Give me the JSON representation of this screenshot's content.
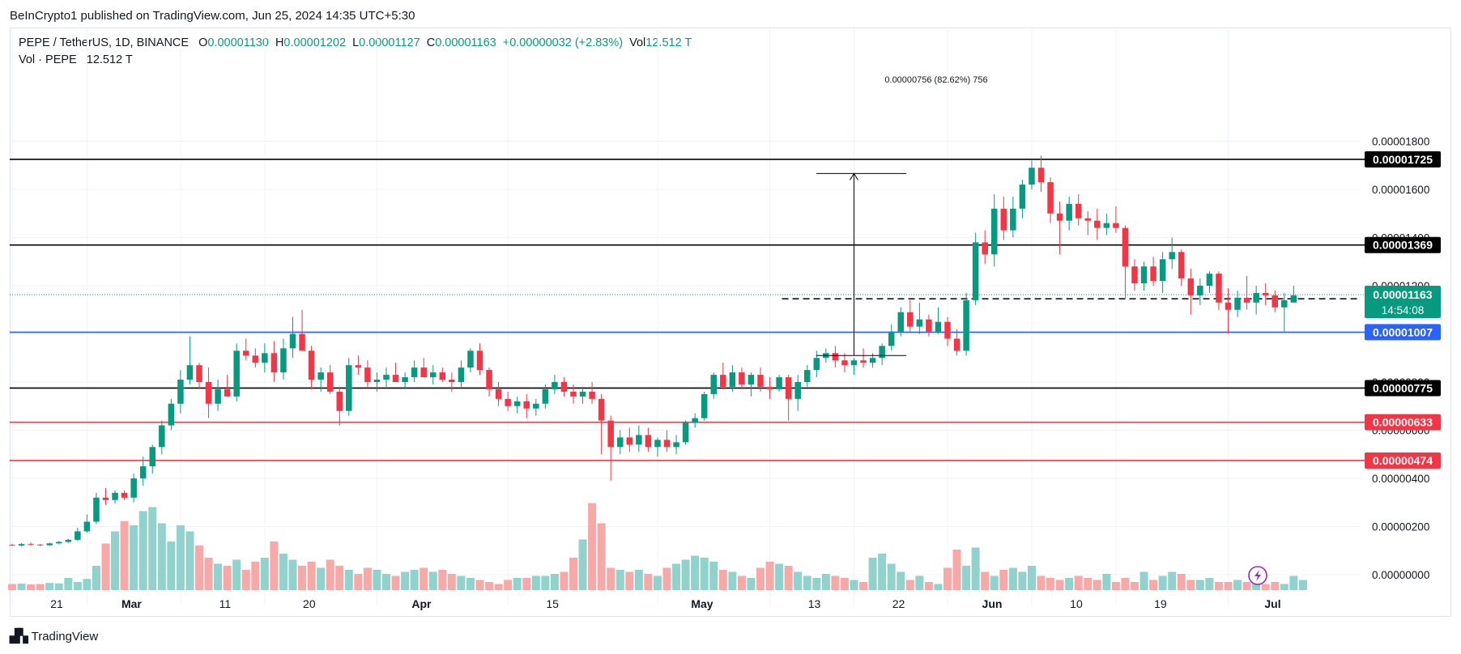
{
  "publisher": "BeInCrypto1 published on TradingView.com, Jun 25, 2024 14:35 UTC+5:30",
  "footer_brand": "TradingView",
  "legend": {
    "symbol": "PEPE / TetherUS, 1D, BINANCE",
    "o_label": "O",
    "o": "0.00001130",
    "h_label": "H",
    "h": "0.00001202",
    "l_label": "L",
    "l": "0.00001127",
    "c_label": "C",
    "c": "0.00001163",
    "change": "+0.00000032 (+2.83%)",
    "vol_label": "Vol",
    "vol": "12.512 T"
  },
  "legend2": {
    "label": "Vol · PEPE",
    "value": "12.512 T"
  },
  "colors": {
    "up": "#089981",
    "down": "#f23645",
    "vol_up": "#92d2cc",
    "vol_down": "#f7a9a7",
    "blue": "#2962ff",
    "black": "#000000"
  },
  "chart_data": {
    "type": "candlestick",
    "y_axis": {
      "min": 0,
      "max": 1.9e-05,
      "ticks": [
        {
          "v": 1.8e-05,
          "label": "0.00001800"
        },
        {
          "v": 1.6e-05,
          "label": "0.00001600"
        },
        {
          "v": 1.4e-05,
          "label": "0.00001400"
        },
        {
          "v": 1.2e-05,
          "label": "0.00001200"
        },
        {
          "v": 8e-06,
          "label": "0.00000800"
        },
        {
          "v": 6e-06,
          "label": "0.00000600"
        },
        {
          "v": 4e-06,
          "label": "0.00000400"
        },
        {
          "v": 2e-06,
          "label": "0.00000200"
        },
        {
          "v": 0,
          "label": "0.00000000"
        }
      ]
    },
    "x_axis": {
      "ticks": [
        {
          "i": 0,
          "label": "21"
        },
        {
          "i": 8,
          "label": "Mar"
        },
        {
          "i": 18,
          "label": "11"
        },
        {
          "i": 27,
          "label": "20"
        },
        {
          "i": 39,
          "label": "Apr"
        },
        {
          "i": 53,
          "label": "15"
        },
        {
          "i": 69,
          "label": "May"
        },
        {
          "i": 81,
          "label": "13"
        },
        {
          "i": 90,
          "label": "22"
        },
        {
          "i": 100,
          "label": "Jun"
        },
        {
          "i": 109,
          "label": "10"
        },
        {
          "i": 118,
          "label": "19"
        },
        {
          "i": 130,
          "label": "Jul"
        }
      ]
    },
    "levels": [
      {
        "price": 1.725e-05,
        "label": "0.00001725",
        "color": "#000000",
        "tag_bg": "#000000"
      },
      {
        "price": 1.369e-05,
        "label": "0.00001369",
        "color": "#000000",
        "tag_bg": "#000000"
      },
      {
        "price": 1.007e-05,
        "label": "0.00001007",
        "color": "#2962ff",
        "tag_bg": "#2962ff"
      },
      {
        "price": 7.75e-06,
        "label": "0.00000775",
        "color": "#000000",
        "tag_bg": "#000000"
      },
      {
        "price": 6.33e-06,
        "label": "0.00000633",
        "color": "#f23645",
        "tag_bg": "#f23645"
      },
      {
        "price": 4.74e-06,
        "label": "0.00000474",
        "color": "#f23645",
        "tag_bg": "#f23645"
      }
    ],
    "dashed_level": {
      "price": 1.146e-05,
      "label": "0.00001146",
      "from": 81,
      "to": 127
    },
    "current_price": {
      "price": 1.163e-05,
      "label": "0.00001163",
      "countdown": "14:54:08"
    },
    "measure": {
      "label": "0.00000756 (82.62%) 756",
      "from": 87,
      "to": 93,
      "low": 9.1e-06,
      "high": 1.666e-05
    },
    "candles": [
      [
        1.24e-06,
        1.28e-06,
        1.19e-06,
        1.21e-06
      ],
      [
        1.21e-06,
        1.31e-06,
        1.18e-06,
        1.27e-06
      ],
      [
        1.27e-06,
        1.34e-06,
        1.22e-06,
        1.25e-06
      ],
      [
        1.25e-06,
        1.28e-06,
        1.18e-06,
        1.22e-06
      ],
      [
        1.22e-06,
        1.33e-06,
        1.2e-06,
        1.3e-06
      ],
      [
        1.3e-06,
        1.4e-06,
        1.26e-06,
        1.36e-06
      ],
      [
        1.36e-06,
        1.48e-06,
        1.32e-06,
        1.45e-06
      ],
      [
        1.45e-06,
        1.95e-06,
        1.4e-06,
        1.8e-06
      ],
      [
        1.8e-06,
        2.5e-06,
        1.75e-06,
        2.2e-06
      ],
      [
        2.2e-06,
        3.4e-06,
        2.1e-06,
        3.2e-06
      ],
      [
        3.2e-06,
        3.6e-06,
        2.9e-06,
        3.1e-06
      ],
      [
        3.1e-06,
        3.5e-06,
        2.95e-06,
        3.4e-06
      ],
      [
        3.4e-06,
        3.5e-06,
        3.1e-06,
        3.2e-06
      ],
      [
        3.2e-06,
        4.2e-06,
        3e-06,
        4e-06
      ],
      [
        4e-06,
        4.9e-06,
        3.7e-06,
        4.5e-06
      ],
      [
        4.5e-06,
        5.4e-06,
        4.2e-06,
        5.3e-06
      ],
      [
        5.3e-06,
        6.4e-06,
        5e-06,
        6.2e-06
      ],
      [
        6.2e-06,
        7.3e-06,
        6e-06,
        7.1e-06
      ],
      [
        7.1e-06,
        8.5e-06,
        6.7e-06,
        8.1e-06
      ],
      [
        8.1e-06,
        9.9e-06,
        7.9e-06,
        8.7e-06
      ],
      [
        8.7e-06,
        8.8e-06,
        7.7e-06,
        8e-06
      ],
      [
        8e-06,
        8.6e-06,
        6.5e-06,
        7.1e-06
      ],
      [
        7.1e-06,
        8.1e-06,
        6.8e-06,
        7.7e-06
      ],
      [
        7.7e-06,
        8.3e-06,
        7.4e-06,
        7.4e-06
      ],
      [
        7.4e-06,
        9.6e-06,
        7.2e-06,
        9.3e-06
      ],
      [
        9.3e-06,
        9.8e-06,
        8.9e-06,
        9.1e-06
      ],
      [
        9.1e-06,
        9.4e-06,
        8.6e-06,
        8.8e-06
      ],
      [
        8.8e-06,
        9.6e-06,
        8.4e-06,
        9.2e-06
      ],
      [
        9.2e-06,
        9.7e-06,
        8e-06,
        8.4e-06
      ],
      [
        8.4e-06,
        9.8e-06,
        8.1e-06,
        9.4e-06
      ],
      [
        9.4e-06,
        1.07e-05,
        9e-06,
        1e-05
      ],
      [
        1e-05,
        1.1e-05,
        9.4e-06,
        9.3e-06
      ],
      [
        9.3e-06,
        9.5e-06,
        7.7e-06,
        8.1e-06
      ],
      [
        8.1e-06,
        8.6e-06,
        7.6e-06,
        8.4e-06
      ],
      [
        8.4e-06,
        8.7e-06,
        7.5e-06,
        7.6e-06
      ],
      [
        7.6e-06,
        7.8e-06,
        6.2e-06,
        6.8e-06
      ],
      [
        6.8e-06,
        9e-06,
        6.6e-06,
        8.7e-06
      ],
      [
        8.7e-06,
        9.1e-06,
        8.3e-06,
        8.6e-06
      ],
      [
        8.6e-06,
        8.9e-06,
        7.8e-06,
        8e-06
      ],
      [
        8e-06,
        8.4e-06,
        7.6e-06,
        8.1e-06
      ],
      [
        8.1e-06,
        8.6e-06,
        7.8e-06,
        8.3e-06
      ],
      [
        8.3e-06,
        8.8e-06,
        8e-06,
        8e-06
      ],
      [
        8e-06,
        8.4e-06,
        7.7e-06,
        8.2e-06
      ],
      [
        8.2e-06,
        8.9e-06,
        8e-06,
        8.6e-06
      ],
      [
        8.6e-06,
        9e-06,
        8.2e-06,
        8.2e-06
      ],
      [
        8.2e-06,
        8.7e-06,
        7.9e-06,
        8.4e-06
      ],
      [
        8.4e-06,
        8.6e-06,
        8e-06,
        8.1e-06
      ],
      [
        8.1e-06,
        8.4e-06,
        7.6e-06,
        8e-06
      ],
      [
        8e-06,
        8.9e-06,
        7.8e-06,
        8.6e-06
      ],
      [
        8.6e-06,
        9.4e-06,
        8.4e-06,
        9.3e-06
      ],
      [
        9.3e-06,
        9.6e-06,
        8.3e-06,
        8.5e-06
      ],
      [
        8.5e-06,
        8.6e-06,
        7.4e-06,
        7.7e-06
      ],
      [
        7.7e-06,
        8e-06,
        7e-06,
        7.3e-06
      ],
      [
        7.3e-06,
        7.6e-06,
        6.8e-06,
        7e-06
      ],
      [
        7e-06,
        7.4e-06,
        6.7e-06,
        7.2e-06
      ],
      [
        7.2e-06,
        7.5e-06,
        6.5e-06,
        6.9e-06
      ],
      [
        6.9e-06,
        7.3e-06,
        6.6e-06,
        7.1e-06
      ],
      [
        7.1e-06,
        7.9e-06,
        6.9e-06,
        7.7e-06
      ],
      [
        7.7e-06,
        8.3e-06,
        7.5e-06,
        8e-06
      ],
      [
        8e-06,
        8.2e-06,
        7.4e-06,
        7.6e-06
      ],
      [
        7.6e-06,
        7.9e-06,
        7.1e-06,
        7.4e-06
      ],
      [
        7.4e-06,
        7.8e-06,
        7.1e-06,
        7.6e-06
      ],
      [
        7.6e-06,
        8e-06,
        7.1e-06,
        7.3e-06
      ],
      [
        7.3e-06,
        7.5e-06,
        5e-06,
        6.4e-06
      ],
      [
        6.4e-06,
        6.6e-06,
        3.9e-06,
        5.3e-06
      ],
      [
        5.3e-06,
        6e-06,
        5e-06,
        5.7e-06
      ],
      [
        5.7e-06,
        6.1e-06,
        5.1e-06,
        5.4e-06
      ],
      [
        5.4e-06,
        6.2e-06,
        5.1e-06,
        5.8e-06
      ],
      [
        5.8e-06,
        6.1e-06,
        5.1e-06,
        5.3e-06
      ],
      [
        5.3e-06,
        5.7e-06,
        4.9e-06,
        5.6e-06
      ],
      [
        5.6e-06,
        6e-06,
        5.1e-06,
        5.3e-06
      ],
      [
        5.3e-06,
        5.8e-06,
        5e-06,
        5.5e-06
      ],
      [
        5.5e-06,
        6.4e-06,
        5.4e-06,
        6.3e-06
      ],
      [
        6.3e-06,
        6.7e-06,
        6.1e-06,
        6.5e-06
      ],
      [
        6.5e-06,
        7.6e-06,
        6.4e-06,
        7.5e-06
      ],
      [
        7.5e-06,
        8.4e-06,
        7.3e-06,
        8.3e-06
      ],
      [
        8.3e-06,
        8.8e-06,
        7.7e-06,
        7.8e-06
      ],
      [
        7.8e-06,
        8.7e-06,
        7.6e-06,
        8.4e-06
      ],
      [
        8.4e-06,
        8.6e-06,
        7.7e-06,
        7.9e-06
      ],
      [
        7.9e-06,
        8.4e-06,
        7.4e-06,
        8.3e-06
      ],
      [
        8.3e-06,
        8.6e-06,
        7.6e-06,
        7.8e-06
      ],
      [
        7.8e-06,
        8.2e-06,
        7.3e-06,
        7.7e-06
      ],
      [
        7.7e-06,
        8.3e-06,
        7.6e-06,
        8.2e-06
      ],
      [
        8.2e-06,
        8.3e-06,
        6.4e-06,
        7.3e-06
      ],
      [
        7.3e-06,
        8.3e-06,
        6.8e-06,
        8e-06
      ],
      [
        8e-06,
        8.7e-06,
        7.8e-06,
        8.5e-06
      ],
      [
        8.5e-06,
        9.3e-06,
        8.2e-06,
        9e-06
      ],
      [
        9e-06,
        9.4e-06,
        8.8e-06,
        9.2e-06
      ],
      [
        9.2e-06,
        9.5e-06,
        8.6e-06,
        8.9e-06
      ],
      [
        8.9e-06,
        9.2e-06,
        8.4e-06,
        8.7e-06
      ],
      [
        8.7e-06,
        9e-06,
        8.3e-06,
        8.9e-06
      ],
      [
        8.9e-06,
        9.4e-06,
        8.6e-06,
        8.8e-06
      ],
      [
        8.8e-06,
        9.2e-06,
        8.6e-06,
        9e-06
      ],
      [
        9e-06,
        9.6e-06,
        8.7e-06,
        9.5e-06
      ],
      [
        9.5e-06,
        1.04e-05,
        9.3e-06,
        1.01e-05
      ],
      [
        1.01e-05,
        1.11e-05,
        9.9e-06,
        1.09e-05
      ],
      [
        1.09e-05,
        1.15e-05,
        1.01e-05,
        1.03e-05
      ],
      [
        1.03e-05,
        1.13e-05,
        1e-05,
        1.06e-05
      ],
      [
        1.06e-05,
        1.08e-05,
        9.9e-06,
        1.01e-05
      ],
      [
        1.01e-05,
        1.11e-05,
        1e-05,
        1.05e-05
      ],
      [
        1.05e-05,
        1.07e-05,
        9.5e-06,
        9.8e-06
      ],
      [
        9.8e-06,
        1.02e-05,
        9.1e-06,
        9.3e-06
      ],
      [
        9.3e-06,
        1.17e-05,
        9.1e-06,
        1.14e-05
      ],
      [
        1.14e-05,
        1.42e-05,
        1.12e-05,
        1.38e-05
      ],
      [
        1.38e-05,
        1.43e-05,
        1.29e-05,
        1.33e-05
      ],
      [
        1.33e-05,
        1.58e-05,
        1.28e-05,
        1.52e-05
      ],
      [
        1.52e-05,
        1.57e-05,
        1.39e-05,
        1.43e-05
      ],
      [
        1.43e-05,
        1.57e-05,
        1.4e-05,
        1.52e-05
      ],
      [
        1.52e-05,
        1.64e-05,
        1.48e-05,
        1.62e-05
      ],
      [
        1.62e-05,
        1.72e-05,
        1.6e-05,
        1.69e-05
      ],
      [
        1.69e-05,
        1.74e-05,
        1.59e-05,
        1.63e-05
      ],
      [
        1.63e-05,
        1.65e-05,
        1.46e-05,
        1.5e-05
      ],
      [
        1.5e-05,
        1.55e-05,
        1.33e-05,
        1.47e-05
      ],
      [
        1.47e-05,
        1.57e-05,
        1.43e-05,
        1.54e-05
      ],
      [
        1.54e-05,
        1.58e-05,
        1.45e-05,
        1.48e-05
      ],
      [
        1.48e-05,
        1.51e-05,
        1.41e-05,
        1.47e-05
      ],
      [
        1.47e-05,
        1.52e-05,
        1.39e-05,
        1.44e-05
      ],
      [
        1.44e-05,
        1.5e-05,
        1.41e-05,
        1.46e-05
      ],
      [
        1.46e-05,
        1.53e-05,
        1.42e-05,
        1.44e-05
      ],
      [
        1.44e-05,
        1.45e-05,
        1.15e-05,
        1.28e-05
      ],
      [
        1.28e-05,
        1.31e-05,
        1.18e-05,
        1.21e-05
      ],
      [
        1.21e-05,
        1.3e-05,
        1.18e-05,
        1.28e-05
      ],
      [
        1.28e-05,
        1.32e-05,
        1.2e-05,
        1.22e-05
      ],
      [
        1.22e-05,
        1.34e-05,
        1.17e-05,
        1.31e-05
      ],
      [
        1.31e-05,
        1.4e-05,
        1.27e-05,
        1.34e-05
      ],
      [
        1.34e-05,
        1.35e-05,
        1.2e-05,
        1.23e-05
      ],
      [
        1.23e-05,
        1.27e-05,
        1.08e-05,
        1.16e-05
      ],
      [
        1.16e-05,
        1.23e-05,
        1.12e-05,
        1.2e-05
      ],
      [
        1.2e-05,
        1.26e-05,
        1.17e-05,
        1.25e-05
      ],
      [
        1.25e-05,
        1.26e-05,
        1.1e-05,
        1.13e-05
      ],
      [
        1.13e-05,
        1.19e-05,
        1e-05,
        1.1e-05
      ],
      [
        1.1e-05,
        1.18e-05,
        1.07e-05,
        1.15e-05
      ],
      [
        1.15e-05,
        1.24e-05,
        1.1e-05,
        1.13e-05
      ],
      [
        1.13e-05,
        1.2e-05,
        1.08e-05,
        1.17e-05
      ],
      [
        1.17e-05,
        1.21e-05,
        1.12e-05,
        1.16e-05
      ],
      [
        1.16e-05,
        1.18e-05,
        1.09e-05,
        1.11e-05
      ],
      [
        1.11e-05,
        1.17e-05,
        1.01e-05,
        1.14e-05
      ],
      [
        1.13e-05,
        1.2e-05,
        1.13e-05,
        1.16e-05
      ]
    ],
    "volumes": [
      0.3,
      0.32,
      0.28,
      0.3,
      0.35,
      0.33,
      0.6,
      0.4,
      0.55,
      1.2,
      2.3,
      2.9,
      3.4,
      3.2,
      3.9,
      4.1,
      3.3,
      2.4,
      3.2,
      2.9,
      2.2,
      1.6,
      1.3,
      1.2,
      1.5,
      1.0,
      1.4,
      1.6,
      2.4,
      1.8,
      1.5,
      1.2,
      1.4,
      1.1,
      1.5,
      1.2,
      1.0,
      0.8,
      1.1,
      1.0,
      0.8,
      0.7,
      0.9,
      1.0,
      1.1,
      0.9,
      1.0,
      0.8,
      0.7,
      0.6,
      0.5,
      0.4,
      0.3,
      0.5,
      0.6,
      0.6,
      0.7,
      0.7,
      0.8,
      0.9,
      1.6,
      2.5,
      4.3,
      3.3,
      1.1,
      1.0,
      0.9,
      1.0,
      0.8,
      0.7,
      1.1,
      1.3,
      1.5,
      1.7,
      1.6,
      1.4,
      1.0,
      0.9,
      0.7,
      0.6,
      1.1,
      1.4,
      1.3,
      1.2,
      0.9,
      0.7,
      0.6,
      0.8,
      0.7,
      0.6,
      0.5,
      0.4,
      1.6,
      1.8,
      1.3,
      0.9,
      0.5,
      0.7,
      0.4,
      0.3,
      1.1,
      2.0,
      1.2,
      2.1,
      0.9,
      0.7,
      1.0,
      1.1,
      0.9,
      1.2,
      0.7,
      0.6,
      0.5,
      0.6,
      0.7,
      0.6,
      0.5,
      0.8,
      0.4,
      0.6,
      0.4,
      0.9,
      0.5,
      0.7,
      0.9,
      0.8,
      0.5,
      0.5,
      0.6,
      0.4,
      0.4,
      0.5,
      0.4,
      0.4,
      0.3,
      0.4,
      0.3,
      0.7,
      0.5
    ]
  }
}
